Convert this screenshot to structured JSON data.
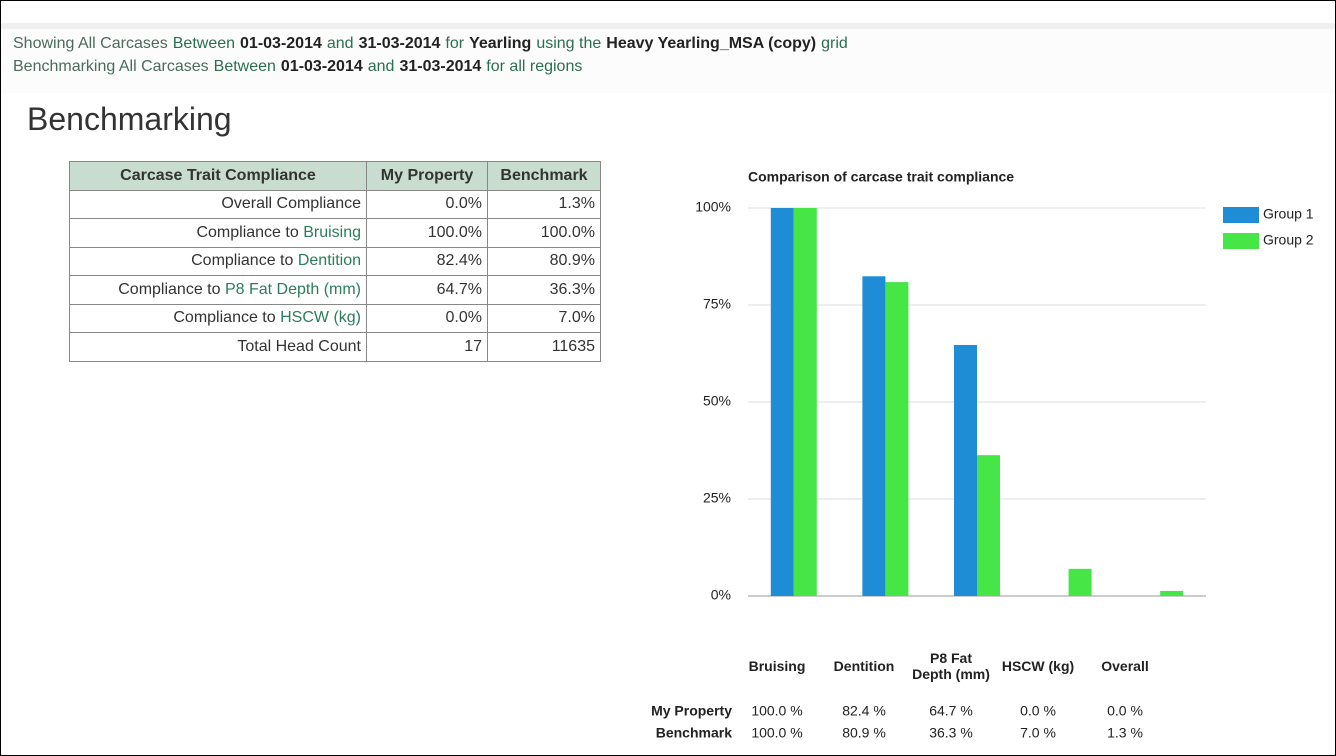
{
  "header": {
    "lines": [
      [
        {
          "text": "Showing All Carcases",
          "bold": false
        },
        {
          "text": "Between",
          "bold": false
        },
        {
          "text": "01-03-2014",
          "bold": true
        },
        {
          "text": "and",
          "bold": false
        },
        {
          "text": "31-03-2014",
          "bold": true
        },
        {
          "text": "for",
          "bold": false
        },
        {
          "text": "Yearling",
          "bold": true
        },
        {
          "text": "using the",
          "bold": false
        },
        {
          "text": "Heavy Yearling_MSA (copy)",
          "bold": true
        },
        {
          "text": "grid",
          "bold": false
        }
      ],
      [
        {
          "text": "Benchmarking All Carcases",
          "bold": false
        },
        {
          "text": "Between",
          "bold": false
        },
        {
          "text": "01-03-2014",
          "bold": true
        },
        {
          "text": "and",
          "bold": false
        },
        {
          "text": "31-03-2014",
          "bold": true
        },
        {
          "text": "for all regions",
          "bold": false
        }
      ]
    ]
  },
  "heading": "Benchmarking",
  "table": {
    "columns": [
      "Carcase Trait Compliance",
      "My Property",
      "Benchmark"
    ],
    "rows": [
      {
        "label": "Overall Compliance",
        "my": "0.0%",
        "bench": "1.3%"
      },
      {
        "prefix": "Compliance to",
        "link": "Bruising",
        "my": "100.0%",
        "bench": "100.0%"
      },
      {
        "prefix": "Compliance to",
        "link": "Dentition",
        "my": "82.4%",
        "bench": "80.9%"
      },
      {
        "prefix": "Compliance to",
        "link": "P8 Fat Depth (mm)",
        "my": "64.7%",
        "bench": "36.3%"
      },
      {
        "prefix": "Compliance to",
        "link": "HSCW (kg)",
        "my": "0.0%",
        "bench": "7.0%"
      },
      {
        "label": "Total Head Count",
        "my": "17",
        "bench": "11635"
      }
    ]
  },
  "chart_data": {
    "type": "bar",
    "title": "Comparison of carcase trait compliance",
    "categories": [
      "Bruising",
      "Dentition",
      "P8 Fat Depth (mm)",
      "HSCW (kg)",
      "Overall"
    ],
    "series": [
      {
        "name": "Group 1",
        "color": "#1f8dd6",
        "values": [
          100,
          82.4,
          64.7,
          0,
          0
        ],
        "value_labels": [
          "100.0 %",
          "82.4 %",
          "64.7 %",
          "0.0 %",
          "0.0 %"
        ]
      },
      {
        "name": "Group 2",
        "color": "#47e647",
        "values": [
          100,
          80.9,
          36.3,
          7.0,
          1.3
        ],
        "value_labels": [
          "100.0 %",
          "80.9 %",
          "36.3 %",
          "7.0 %",
          "1.3 %"
        ]
      }
    ],
    "ylim": [
      0,
      100
    ],
    "yticks": [
      {
        "value": 0,
        "label": "0%"
      },
      {
        "value": 25,
        "label": "25%"
      },
      {
        "value": 50,
        "label": "50%"
      },
      {
        "value": 75,
        "label": "75%"
      },
      {
        "value": 100,
        "label": "100%"
      }
    ],
    "grid": true,
    "legend": "right",
    "data_table": {
      "row_labels": [
        "My Property",
        "Benchmark"
      ]
    }
  }
}
